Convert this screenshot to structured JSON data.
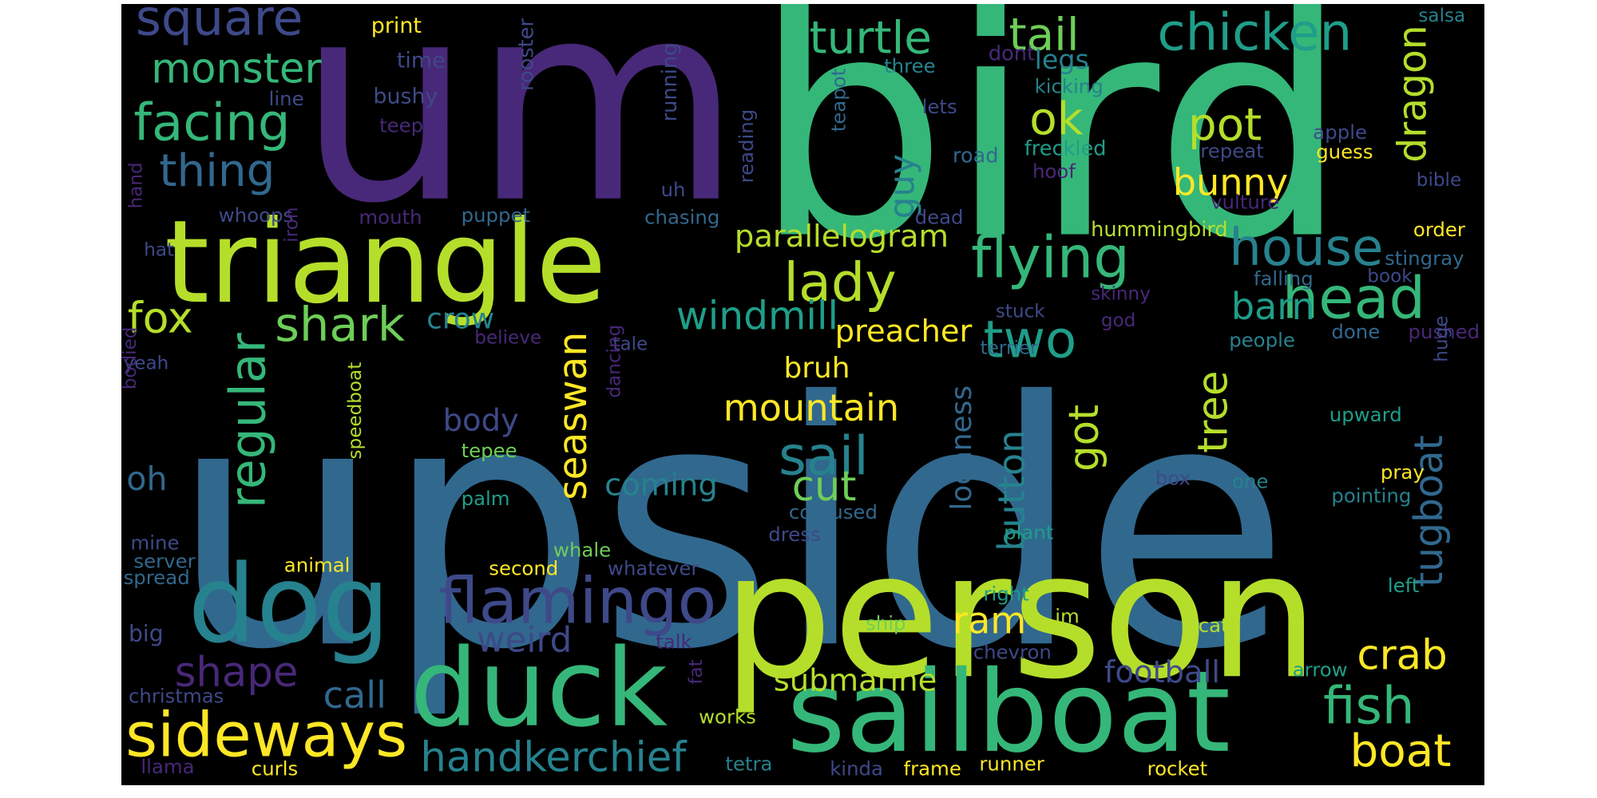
{
  "palette": {
    "background": "#000000",
    "purple_dark": "#482878",
    "indigo": "#3e4989",
    "blue": "#31688e",
    "teal": "#26828e",
    "teal_green": "#1f9e89",
    "green": "#35b779",
    "green_light": "#6ece58",
    "lime": "#b5de2b",
    "yellow": "#fde725",
    "purple_deep": "#440154"
  },
  "words": [
    {
      "text": "upside",
      "color": "#31688e"
    },
    {
      "text": "um",
      "color": "#482878"
    },
    {
      "text": "bird",
      "color": "#35b779"
    },
    {
      "text": "person",
      "color": "#b5de2b"
    },
    {
      "text": "triangle",
      "color": "#b5de2b"
    },
    {
      "text": "sailboat",
      "color": "#35b779"
    },
    {
      "text": "duck",
      "color": "#35b779"
    },
    {
      "text": "dog",
      "color": "#26828e"
    },
    {
      "text": "sideways",
      "color": "#fde725"
    },
    {
      "text": "flamingo",
      "color": "#3e4989"
    },
    {
      "text": "square",
      "color": "#3e4989"
    },
    {
      "text": "monster",
      "color": "#35b779"
    },
    {
      "text": "facing",
      "color": "#35b779"
    },
    {
      "text": "thing",
      "color": "#31688e"
    },
    {
      "text": "turtle",
      "color": "#35b779"
    },
    {
      "text": "tail",
      "color": "#6ece58"
    },
    {
      "text": "chicken",
      "color": "#1f9e89"
    },
    {
      "text": "house",
      "color": "#26828e"
    },
    {
      "text": "flying",
      "color": "#35b779"
    },
    {
      "text": "head",
      "color": "#35b779"
    },
    {
      "text": "lady",
      "color": "#b5de2b"
    },
    {
      "text": "shark",
      "color": "#6ece58"
    },
    {
      "text": "fox",
      "color": "#b5de2b"
    },
    {
      "text": "two",
      "color": "#1f9e89"
    },
    {
      "text": "regular",
      "color": "#35b779"
    },
    {
      "text": "sail",
      "color": "#26828e"
    },
    {
      "text": "fish",
      "color": "#35b779"
    },
    {
      "text": "boat",
      "color": "#fde725"
    },
    {
      "text": "handkerchief",
      "color": "#26828e"
    },
    {
      "text": "crab",
      "color": "#fde725"
    },
    {
      "text": "pot",
      "color": "#b5de2b"
    },
    {
      "text": "ok",
      "color": "#b5de2b"
    },
    {
      "text": "dragon",
      "color": "#b5de2b"
    },
    {
      "text": "guy",
      "color": "#26828e"
    },
    {
      "text": "bunny",
      "color": "#fde725"
    },
    {
      "text": "parallelogram",
      "color": "#b5de2b"
    },
    {
      "text": "windmill",
      "color": "#1f9e89"
    },
    {
      "text": "preacher",
      "color": "#fde725"
    },
    {
      "text": "barn",
      "color": "#1f9e89"
    },
    {
      "text": "mountain",
      "color": "#fde725"
    },
    {
      "text": "got",
      "color": "#b5de2b"
    },
    {
      "text": "button",
      "color": "#26828e"
    },
    {
      "text": "lochness",
      "color": "#31688e"
    },
    {
      "text": "tree",
      "color": "#b5de2b"
    },
    {
      "text": "tugboat",
      "color": "#31688e"
    },
    {
      "text": "seaswan",
      "color": "#fde725"
    },
    {
      "text": "weird",
      "color": "#3e4989"
    },
    {
      "text": "shape",
      "color": "#482878"
    },
    {
      "text": "call",
      "color": "#31688e"
    },
    {
      "text": "submarine",
      "color": "#b5de2b"
    },
    {
      "text": "football",
      "color": "#3e4989"
    },
    {
      "text": "ram",
      "color": "#fde725"
    },
    {
      "text": "cut",
      "color": "#6ece58"
    },
    {
      "text": "coming",
      "color": "#26828e"
    },
    {
      "text": "body",
      "color": "#3e4989"
    },
    {
      "text": "bruh",
      "color": "#fde725"
    },
    {
      "text": "crow",
      "color": "#26828e"
    },
    {
      "text": "oh",
      "color": "#31688e"
    },
    {
      "text": "legs",
      "color": "#26828e"
    },
    {
      "text": "print",
      "color": "#fde725"
    },
    {
      "text": "time",
      "color": "#3e4989"
    },
    {
      "text": "rooster",
      "color": "#3e4989"
    },
    {
      "text": "bushy",
      "color": "#3e4989"
    },
    {
      "text": "line",
      "color": "#3e4989"
    },
    {
      "text": "teepee",
      "color": "#482878"
    },
    {
      "text": "running",
      "color": "#3e4989"
    },
    {
      "text": "three",
      "color": "#26828e"
    },
    {
      "text": "dont",
      "color": "#482878"
    },
    {
      "text": "kicking",
      "color": "#26828e"
    },
    {
      "text": "lets",
      "color": "#3e4989"
    },
    {
      "text": "teapot",
      "color": "#31688e"
    },
    {
      "text": "road",
      "color": "#31688e"
    },
    {
      "text": "freckled",
      "color": "#1f9e89"
    },
    {
      "text": "hoof",
      "color": "#482878"
    },
    {
      "text": "apple",
      "color": "#3e4989"
    },
    {
      "text": "repeat",
      "color": "#3e4989"
    },
    {
      "text": "guess",
      "color": "#fde725"
    },
    {
      "text": "salsa",
      "color": "#26828e"
    },
    {
      "text": "bible",
      "color": "#3e4989"
    },
    {
      "text": "reading",
      "color": "#3e4989"
    },
    {
      "text": "uh",
      "color": "#3e4989"
    },
    {
      "text": "whoops",
      "color": "#3e4989"
    },
    {
      "text": "mouth",
      "color": "#482878"
    },
    {
      "text": "puppet",
      "color": "#31688e"
    },
    {
      "text": "chasing",
      "color": "#31688e"
    },
    {
      "text": "dead",
      "color": "#3e4989"
    },
    {
      "text": "vulture",
      "color": "#482878"
    },
    {
      "text": "hummingbird",
      "color": "#b5de2b"
    },
    {
      "text": "order",
      "color": "#fde725"
    },
    {
      "text": "hand",
      "color": "#482878"
    },
    {
      "text": "hat",
      "color": "#3e4989"
    },
    {
      "text": "iron",
      "color": "#482878"
    },
    {
      "text": "stingray",
      "color": "#31688e"
    },
    {
      "text": "falling",
      "color": "#31688e"
    },
    {
      "text": "book",
      "color": "#3e4989"
    },
    {
      "text": "skinny",
      "color": "#482878"
    },
    {
      "text": "stuck",
      "color": "#3e4989"
    },
    {
      "text": "god",
      "color": "#482878"
    },
    {
      "text": "believe",
      "color": "#482878"
    },
    {
      "text": "tale",
      "color": "#3e4989"
    },
    {
      "text": "terrier",
      "color": "#31688e"
    },
    {
      "text": "people",
      "color": "#26828e"
    },
    {
      "text": "done",
      "color": "#31688e"
    },
    {
      "text": "pushed",
      "color": "#482878"
    },
    {
      "text": "yeah",
      "color": "#3e4989"
    },
    {
      "text": "dancing",
      "color": "#482878"
    },
    {
      "text": "bodied",
      "color": "#482878"
    },
    {
      "text": "huge",
      "color": "#3e4989"
    },
    {
      "text": "upward",
      "color": "#1f9e89"
    },
    {
      "text": "tepee",
      "color": "#6ece58"
    },
    {
      "text": "box",
      "color": "#3e4989"
    },
    {
      "text": "pray",
      "color": "#fde725"
    },
    {
      "text": "pointing",
      "color": "#26828e"
    },
    {
      "text": "one",
      "color": "#26828e"
    },
    {
      "text": "palm",
      "color": "#1f9e89"
    },
    {
      "text": "confused",
      "color": "#31688e"
    },
    {
      "text": "dress",
      "color": "#3e4989"
    },
    {
      "text": "plant",
      "color": "#1f9e89"
    },
    {
      "text": "speedboat",
      "color": "#b5de2b"
    },
    {
      "text": "mine",
      "color": "#3e4989"
    },
    {
      "text": "server",
      "color": "#31688e"
    },
    {
      "text": "spread",
      "color": "#31688e"
    },
    {
      "text": "whale",
      "color": "#6ece58"
    },
    {
      "text": "second",
      "color": "#fde725"
    },
    {
      "text": "whatever",
      "color": "#3e4989"
    },
    {
      "text": "animal",
      "color": "#fde725"
    },
    {
      "text": "left",
      "color": "#1f9e89"
    },
    {
      "text": "right",
      "color": "#1f9e89"
    },
    {
      "text": "im",
      "color": "#b5de2b"
    },
    {
      "text": "big",
      "color": "#3e4989"
    },
    {
      "text": "ship",
      "color": "#6ece58"
    },
    {
      "text": "talk",
      "color": "#482878"
    },
    {
      "text": "chevron",
      "color": "#3e4989"
    },
    {
      "text": "cat",
      "color": "#b5de2b"
    },
    {
      "text": "arrow",
      "color": "#1f9e89"
    },
    {
      "text": "christmas",
      "color": "#3e4989"
    },
    {
      "text": "fat",
      "color": "#482878"
    },
    {
      "text": "works",
      "color": "#b5de2b"
    },
    {
      "text": "llama",
      "color": "#482878"
    },
    {
      "text": "curls",
      "color": "#fde725"
    },
    {
      "text": "tetra",
      "color": "#26828e"
    },
    {
      "text": "kinda",
      "color": "#3e4989"
    },
    {
      "text": "frame",
      "color": "#fde725"
    },
    {
      "text": "runner",
      "color": "#fde725"
    },
    {
      "text": "rocket",
      "color": "#fde725"
    }
  ]
}
